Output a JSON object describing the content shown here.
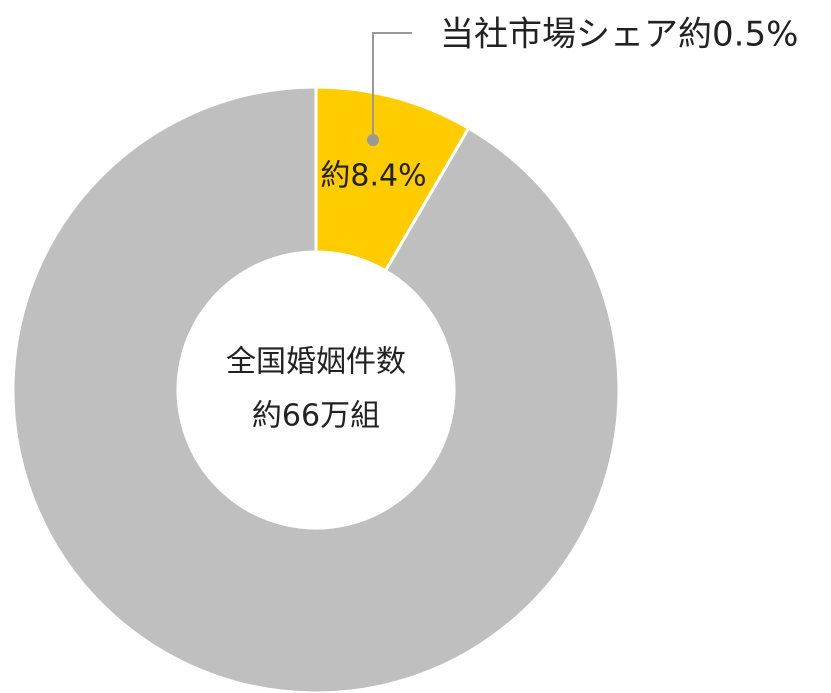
{
  "chart_data": {
    "type": "pie",
    "donut": true,
    "categories": [
      null,
      null
    ],
    "values": [
      8.4,
      91.6
    ],
    "value_labels": [
      "約8.4%",
      null
    ],
    "colors": [
      "#ffcc00",
      "#bfbfbf"
    ],
    "center_text": [
      "全国婚姻件数",
      "約66万組"
    ],
    "annotation": "当社市場シェア約0.5%"
  }
}
